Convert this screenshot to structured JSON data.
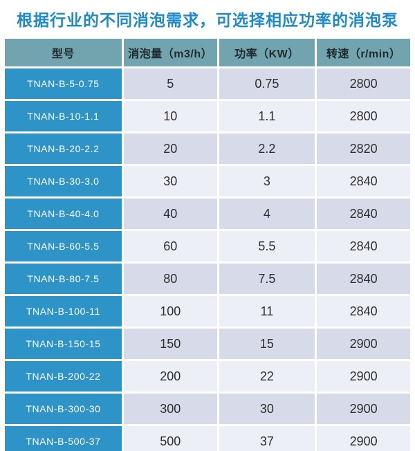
{
  "title": "根据行业的不同消泡需求，可选择相应功率的消泡泵",
  "colors": {
    "title_blue": "#1e8aca",
    "header_teal": "#71a4ae",
    "model_column_blue": "#2e93c6",
    "row_dark": "#d7dbe9",
    "row_light": "#edeff6"
  },
  "table": {
    "headers": [
      "型号",
      "消泡量（m3/h）",
      "功率（KW）",
      "转速（r/min）"
    ],
    "rows": [
      {
        "model": "TNAN-B-5-0.75",
        "capacity": "5",
        "power": "0.75",
        "speed": "2800"
      },
      {
        "model": "TNAN-B-10-1.1",
        "capacity": "10",
        "power": "1.1",
        "speed": "2800"
      },
      {
        "model": "TNAN-B-20-2.2",
        "capacity": "20",
        "power": "2.2",
        "speed": "2820"
      },
      {
        "model": "TNAN-B-30-3.0",
        "capacity": "30",
        "power": "3",
        "speed": "2840"
      },
      {
        "model": "TNAN-B-40-4.0",
        "capacity": "40",
        "power": "4",
        "speed": "2840"
      },
      {
        "model": "TNAN-B-60-5.5",
        "capacity": "60",
        "power": "5.5",
        "speed": "2840"
      },
      {
        "model": "TNAN-B-80-7.5",
        "capacity": "80",
        "power": "7.5",
        "speed": "2840"
      },
      {
        "model": "TNAN-B-100-11",
        "capacity": "100",
        "power": "11",
        "speed": "2840"
      },
      {
        "model": "TNAN-B-150-15",
        "capacity": "150",
        "power": "15",
        "speed": "2900"
      },
      {
        "model": "TNAN-B-200-22",
        "capacity": "200",
        "power": "22",
        "speed": "2900"
      },
      {
        "model": "TNAN-B-300-30",
        "capacity": "300",
        "power": "30",
        "speed": "2900"
      },
      {
        "model": "TNAN-B-500-37",
        "capacity": "500",
        "power": "37",
        "speed": "2900"
      }
    ]
  }
}
